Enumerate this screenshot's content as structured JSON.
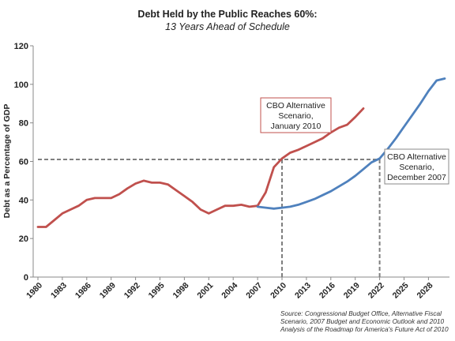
{
  "chart_data": {
    "type": "line",
    "title": "Debt Held by the Public Reaches 60%:",
    "subtitle": "13 Years Ahead of Schedule",
    "ylabel": "Debt as a Percentage of GDP",
    "xlabel": "",
    "ylim": [
      0,
      120
    ],
    "yticks": [
      "0",
      "20",
      "40",
      "60",
      "80",
      "100",
      "120"
    ],
    "xlim": [
      1980,
      2030
    ],
    "xticks": [
      "1980",
      "1983",
      "1986",
      "1989",
      "1992",
      "1995",
      "1998",
      "2001",
      "2004",
      "2007",
      "2010",
      "2013",
      "2016",
      "2019",
      "2022",
      "2025",
      "2028"
    ],
    "grid": false,
    "reference_line_y": 61,
    "reference_verticals_x": [
      2010,
      2022
    ],
    "series": [
      {
        "color": "#c0504d",
        "x": [
          1980,
          1981,
          1982,
          1983,
          1984,
          1985,
          1986,
          1987,
          1988,
          1989,
          1990,
          1991,
          1992,
          1993,
          1994,
          1995,
          1996,
          1997,
          1998,
          1999,
          2000,
          2001,
          2002,
          2003,
          2004,
          2005,
          2006,
          2007,
          2008,
          2009,
          2010,
          2011,
          2012,
          2013,
          2014,
          2015,
          2016,
          2017,
          2018,
          2019,
          2020
        ],
        "values": [
          26,
          26,
          29.5,
          33,
          35,
          37,
          40,
          41,
          41,
          41,
          43,
          46,
          48.5,
          50,
          49,
          49,
          48,
          45,
          42,
          39,
          35,
          33,
          35,
          37,
          37,
          37.5,
          36.5,
          37,
          44,
          57,
          61.5,
          64.5,
          66,
          68,
          70,
          72,
          75,
          77.5,
          79,
          83,
          87.5
        ]
      },
      {
        "color": "#4f81bd",
        "x": [
          2007,
          2008,
          2009,
          2010,
          2011,
          2012,
          2013,
          2014,
          2015,
          2016,
          2017,
          2018,
          2019,
          2020,
          2021,
          2022,
          2023,
          2024,
          2025,
          2026,
          2027,
          2028,
          2029,
          2030
        ],
        "values": [
          36.5,
          36,
          35.5,
          36,
          36.5,
          37.5,
          39,
          40.5,
          42.5,
          44.5,
          47,
          49.5,
          52.5,
          56,
          59.5,
          61.5,
          66.5,
          72,
          78,
          84,
          90,
          96.5,
          102,
          103
        ]
      }
    ],
    "annotations": {
      "red": [
        "CBO Alternative",
        "Scenario,",
        "January 2010"
      ],
      "blue": [
        "CBO Alternative",
        "Scenario,",
        "December 2007"
      ]
    },
    "source": [
      "Source: Congressional Budget Office, Alternative Fiscal",
      "Scenario,  2007 Budget and Economic Outlook and 2010",
      "Analysis of the Roadmap for America's Future Act of 2010"
    ]
  }
}
